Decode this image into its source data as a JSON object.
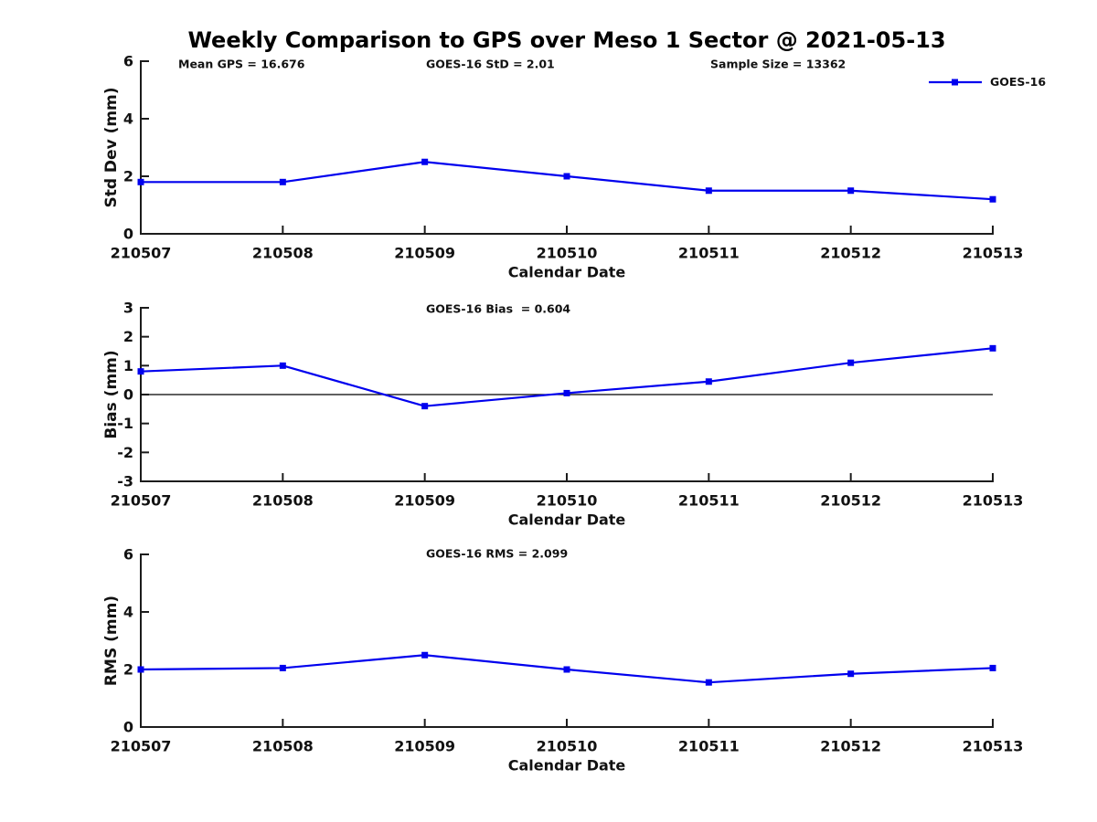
{
  "title": "Weekly Comparison to GPS over Meso 1 Sector @ 2021-05-13",
  "legend": {
    "label": "GOES-16",
    "position": "top-right"
  },
  "colors": {
    "line": "#0000EE",
    "marker": "#0000EE",
    "text": "#111111",
    "axis": "#1c1c1c",
    "zero_line": "#000000",
    "background": "#ffffff"
  },
  "chart_data": [
    {
      "type": "line",
      "id": "std-dev",
      "annotations": [
        "Mean GPS = 16.676",
        "GOES-16 StD = 2.01",
        "Sample Size = 13362"
      ],
      "xlabel": "Calendar Date",
      "ylabel": "Std Dev (mm)",
      "ylim": [
        0,
        6
      ],
      "yticks": [
        0,
        2,
        4,
        6
      ],
      "grid": false,
      "zero_line": false,
      "categories": [
        "210507",
        "210508",
        "210509",
        "210510",
        "210511",
        "210512",
        "210513"
      ],
      "series": [
        {
          "name": "GOES-16",
          "values": [
            1.8,
            1.8,
            2.5,
            2.0,
            1.5,
            1.5,
            1.2
          ]
        }
      ]
    },
    {
      "type": "line",
      "id": "bias",
      "annotations": [
        "GOES-16 Bias  = 0.604"
      ],
      "xlabel": "Calendar Date",
      "ylabel": "Bias (mm)",
      "ylim": [
        -3,
        3
      ],
      "yticks": [
        -3,
        -2,
        -1,
        0,
        1,
        2,
        3
      ],
      "grid": false,
      "zero_line": true,
      "categories": [
        "210507",
        "210508",
        "210509",
        "210510",
        "210511",
        "210512",
        "210513"
      ],
      "series": [
        {
          "name": "GOES-16",
          "values": [
            0.8,
            1.0,
            -0.4,
            0.05,
            0.45,
            1.1,
            1.6
          ]
        }
      ]
    },
    {
      "type": "line",
      "id": "rms",
      "annotations": [
        "GOES-16 RMS = 2.099"
      ],
      "xlabel": "Calendar Date",
      "ylabel": "RMS (mm)",
      "ylim": [
        0,
        6
      ],
      "yticks": [
        0,
        2,
        4,
        6
      ],
      "grid": false,
      "zero_line": false,
      "categories": [
        "210507",
        "210508",
        "210509",
        "210510",
        "210511",
        "210512",
        "210513"
      ],
      "series": [
        {
          "name": "GOES-16",
          "values": [
            2.0,
            2.05,
            2.5,
            2.0,
            1.55,
            1.85,
            2.05
          ]
        }
      ]
    }
  ]
}
